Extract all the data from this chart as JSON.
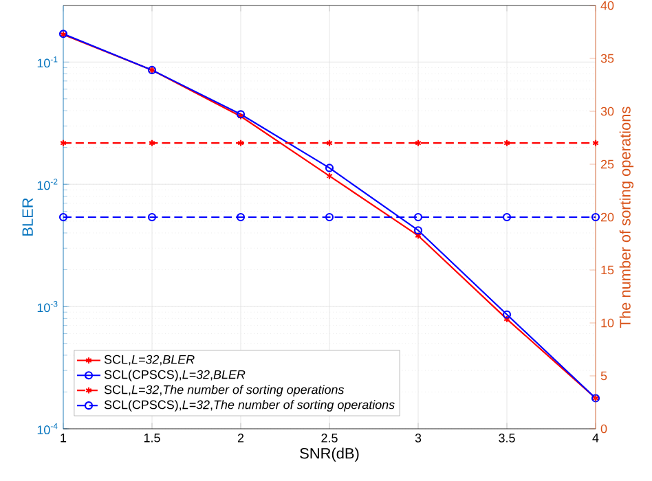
{
  "chart_data": {
    "type": "line",
    "xlabel": "SNR(dB)",
    "ylabel": "BLER",
    "y2label": "The number of sorting operations",
    "x": [
      1,
      1.5,
      2,
      2.5,
      3,
      3.5,
      4
    ],
    "xlim": [
      1,
      4
    ],
    "xticks": [
      1,
      1.5,
      2,
      2.5,
      3,
      3.5,
      4
    ],
    "ylim": [
      0.0001,
      0.29
    ],
    "yticks": [
      {
        "value": 0.0001,
        "label": "10$^{-4}$"
      },
      {
        "value": 0.001,
        "label": "10$^{-3}$"
      },
      {
        "value": 0.01,
        "label": "10$^{-2}$"
      },
      {
        "value": 0.1,
        "label": "10$^{-1}$"
      }
    ],
    "y2lim": [
      0,
      40
    ],
    "y2ticks": [
      0,
      5,
      10,
      15,
      20,
      25,
      30,
      35,
      40
    ],
    "log": "y",
    "grid": true,
    "legend": "bottom left",
    "series": [
      {
        "name": "SCL,*L=32*,*BLER*",
        "color": "#ff0000",
        "marker": "cross",
        "line_style": "solid",
        "values": [
          0.168,
          0.086,
          0.036,
          0.0117,
          0.0038,
          0.00079,
          0.000178
        ]
      },
      {
        "name": "SCL(CPSCS),*L=32*,*BLER*",
        "color": "#0000ff",
        "marker": "circle",
        "line_style": "solid",
        "values": [
          0.17,
          0.086,
          0.0374,
          0.0136,
          0.0042,
          0.00086,
          0.000178
        ]
      },
      {
        "name": "SCL,*L=32*,*The number of sorting operations*",
        "color": "#ff0000",
        "marker": "cross",
        "line_style": "dashed",
        "axis": "y2",
        "values": [
          27,
          27,
          27,
          27,
          27,
          27,
          27
        ]
      },
      {
        "name": "SCL(CPSCS),*L=32*,*The number of sorting operations*",
        "color": "#0000ff",
        "marker": "circle",
        "line_style": "dashed",
        "axis": "y2",
        "values": [
          20,
          20,
          20,
          20,
          20,
          20,
          20
        ]
      }
    ]
  }
}
